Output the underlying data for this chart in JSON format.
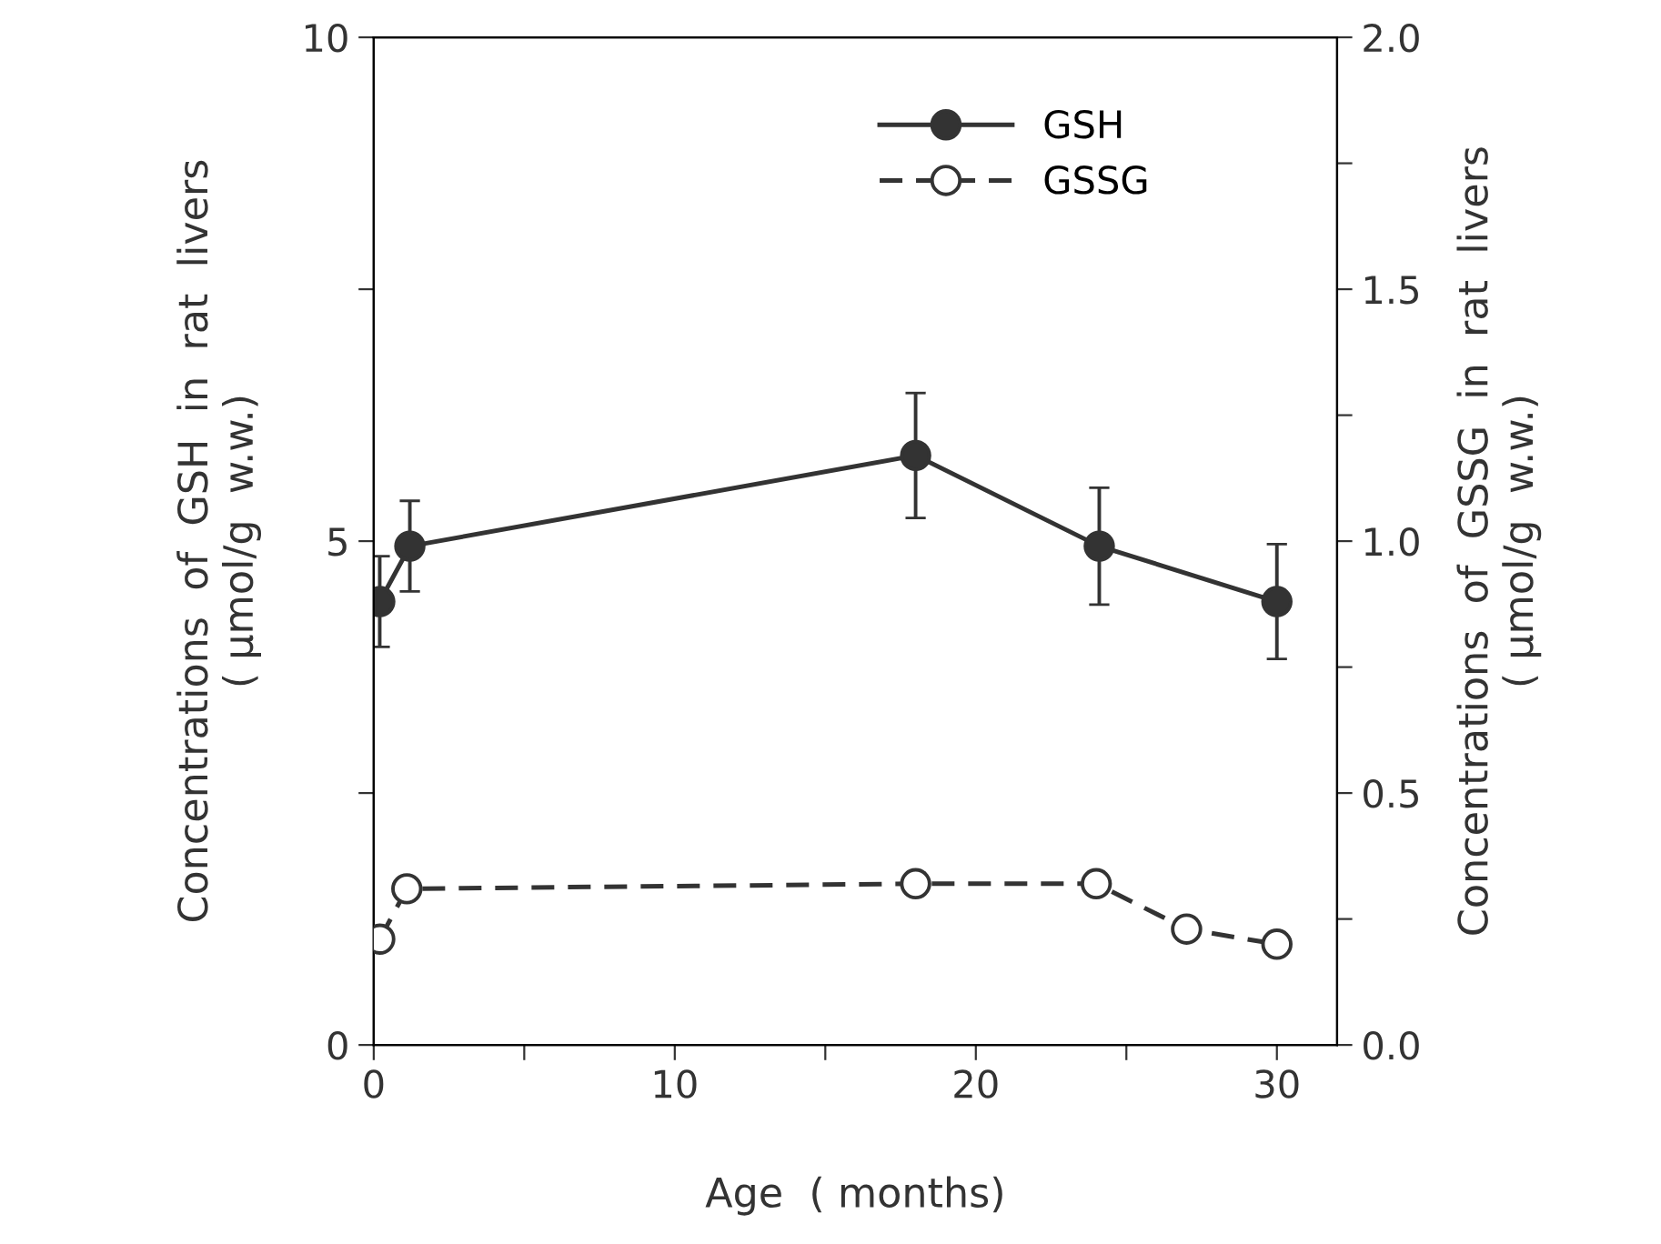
{
  "chart_data": {
    "type": "line",
    "xlabel": "Age  ( months)",
    "ylabel": "Concentrations  of  GSH  in  rat  livers\n( μmol/g  w.w.)",
    "y2label": "Concentrations  of  GSSG  in  rat  livers\n( μmol/g  w.w.)",
    "xlim": [
      0,
      32
    ],
    "xticks": [
      0,
      {
        "value": 5,
        "label": null
      },
      10,
      {
        "value": 15,
        "label": null
      },
      20,
      {
        "value": 25,
        "label": null
      },
      30
    ],
    "ylim": [
      0,
      10
    ],
    "yticks": [
      0,
      {
        "value": 2.5,
        "label": null
      },
      5,
      {
        "value": 7.5,
        "label": null
      },
      10
    ],
    "y2lim": [
      0,
      2
    ],
    "y2ticks": [
      "0.0",
      {
        "value": 0.25,
        "label": null
      },
      {
        "value": 0.5,
        "label": "0.5"
      },
      {
        "value": 0.75,
        "label": null
      },
      {
        "value": 1.0,
        "label": "1.0"
      },
      {
        "value": 1.25,
        "label": null
      },
      {
        "value": 1.5,
        "label": "1.5"
      },
      {
        "value": 1.75,
        "label": null
      },
      {
        "value": 2.0,
        "label": "2.0"
      }
    ],
    "legend": "top right",
    "marker": "circle",
    "grid": false,
    "series": [
      {
        "name": "GSH",
        "color": "#333333",
        "x": [
          0.2,
          1.2,
          18,
          24.1,
          30
        ],
        "values": [
          4.4,
          4.95,
          5.85,
          4.95,
          4.4
        ],
        "errors": [
          0.45,
          0.45,
          0.62,
          0.58,
          0.57
        ],
        "line_style": "solid"
      },
      {
        "name": "GSSG",
        "color": "#333333",
        "axis": "y2",
        "x": [
          0.2,
          1.1,
          18,
          24,
          27,
          30
        ],
        "values": [
          0.21,
          0.31,
          0.32,
          0.32,
          0.23,
          0.2
        ],
        "line_style": "dashed"
      }
    ]
  }
}
